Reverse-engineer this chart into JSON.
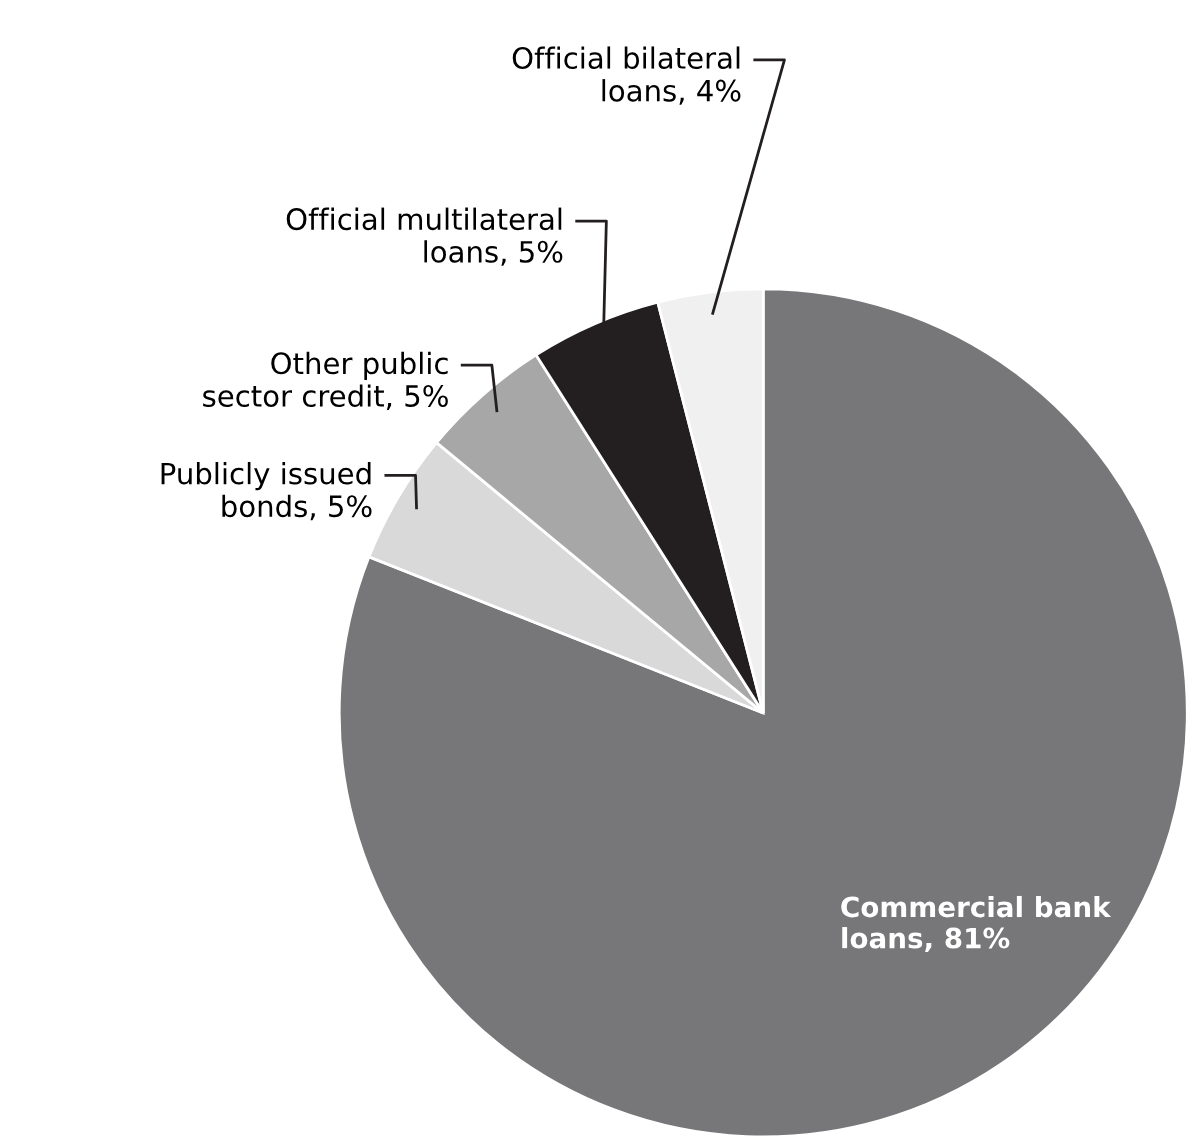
{
  "chart_data": {
    "type": "pie",
    "categories": [
      "Commercial bank\nloans",
      "Publicly issued\nbonds",
      "Other public\nsector credit",
      "Official multilateral\nloans",
      "Official bilateral\nloans"
    ],
    "value_labels": [
      "81%",
      "5%",
      "5%",
      "5%",
      "4%"
    ],
    "values": [
      81,
      5,
      5,
      5,
      4
    ],
    "colors": [
      "#77777a",
      "#d9d9da",
      "#a7a7a8",
      "#231f20",
      "#f0f0f0"
    ]
  }
}
